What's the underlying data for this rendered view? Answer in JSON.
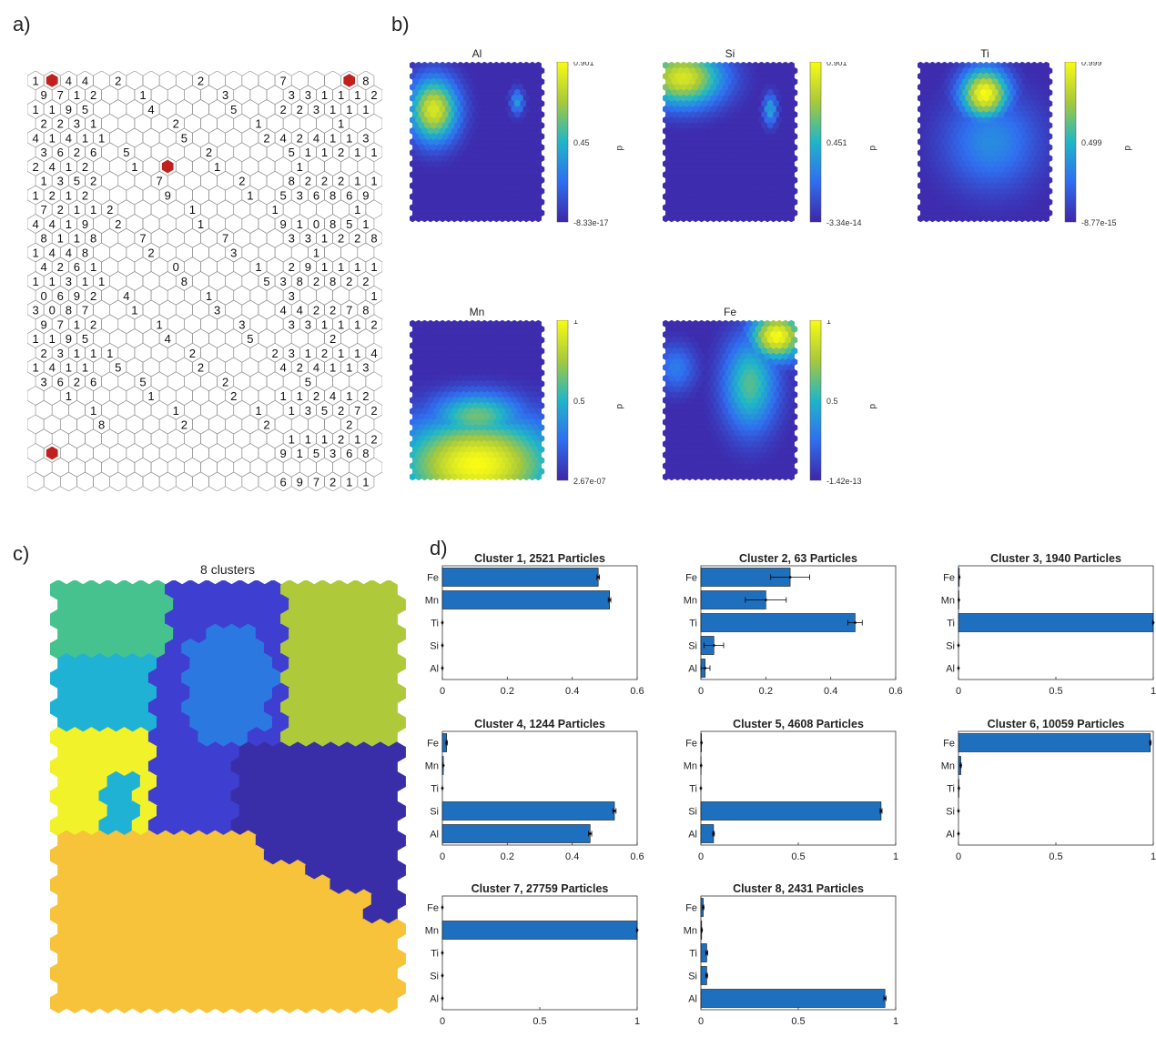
{
  "panels": {
    "a": "a)",
    "b": "b)",
    "c": "c)",
    "d": "d)"
  },
  "hit_map": {
    "numbers_sample": [
      "1",
      "3",
      "4",
      "4",
      "2",
      "2",
      "7",
      "8",
      "9",
      "7",
      "1",
      "2",
      "1",
      "3",
      "3",
      "3",
      "1",
      "1",
      "1",
      "2",
      "1",
      "1",
      "9",
      "5",
      "4",
      "5",
      "2",
      "2",
      "3",
      "1",
      "1",
      "1",
      "2",
      "2",
      "3",
      "1",
      "2",
      "1",
      "1",
      "4",
      "1",
      "4",
      "1",
      "1",
      "5",
      "2",
      "4",
      "2",
      "4",
      "1",
      "1",
      "3",
      "3",
      "6",
      "2",
      "6",
      "5",
      "2",
      "5",
      "1",
      "1",
      "2",
      "1",
      "1",
      "2",
      "4",
      "1",
      "2",
      "1",
      "1",
      "1",
      "1",
      "3",
      "5",
      "2",
      "7",
      "2",
      "8",
      "2",
      "2",
      "2",
      "1",
      "1",
      "1",
      "2",
      "1",
      "2",
      "9",
      "1",
      "5",
      "3",
      "6",
      "8",
      "6",
      "9",
      "7",
      "2",
      "1",
      "1",
      "2",
      "1",
      "1",
      "1",
      "4",
      "4",
      "1",
      "9",
      "2",
      "1",
      "9",
      "1",
      "0",
      "8",
      "5",
      "1",
      "8",
      "1",
      "1",
      "8",
      "7",
      "7",
      "3",
      "3",
      "1",
      "2",
      "2",
      "8",
      "1",
      "4",
      "4",
      "8",
      "2",
      "3",
      "1",
      "4",
      "2",
      "6",
      "1",
      "0",
      "1",
      "2",
      "9",
      "1",
      "1",
      "1",
      "1",
      "1",
      "1",
      "3",
      "1",
      "1",
      "8",
      "5",
      "3",
      "8",
      "2",
      "8",
      "2",
      "2",
      "0",
      "6",
      "9",
      "2",
      "4",
      "1",
      "3",
      "1",
      "3",
      "0",
      "8",
      "7"
    ]
  },
  "component_planes": [
    {
      "name": "Al",
      "cmax": "0.901",
      "cmid": "0.45",
      "cmin": "-8.33e-17",
      "unit": "d"
    },
    {
      "name": "Si",
      "cmax": "0.901",
      "cmid": "0.451",
      "cmin": "-3.34e-14",
      "unit": "d"
    },
    {
      "name": "Ti",
      "cmax": "0.999",
      "cmid": "0.499",
      "cmin": "-8.77e-15",
      "unit": "d"
    },
    {
      "name": "Mn",
      "cmax": "1",
      "cmid": "0.5",
      "cmin": "2.67e-07",
      "unit": "d"
    },
    {
      "name": "Fe",
      "cmax": "1",
      "cmid": "0.5",
      "cmin": "-1.42e-13",
      "unit": "d"
    }
  ],
  "cluster_map": {
    "title": "8 clusters",
    "colors": {
      "c1": "#f6c33a",
      "c2": "#3e3ed1",
      "c3": "#2b79e0",
      "c4": "#1fb2d5",
      "c5": "#46c28e",
      "c6": "#aec93a",
      "c7": "#f2f22a",
      "c8": "#3a2ea8"
    }
  },
  "chart_data": [
    {
      "type": "bar",
      "orientation": "horizontal",
      "title": "Cluster 1, 2521 Particles",
      "categories": [
        "Fe",
        "Mn",
        "Ti",
        "Si",
        "Al"
      ],
      "values": [
        0.48,
        0.515,
        0,
        0,
        0
      ],
      "errors": [
        0.004,
        0.004,
        0,
        0,
        0
      ],
      "xlim": [
        0,
        0.6
      ],
      "xticks": [
        "0",
        "0.2",
        "0.4",
        "0.6"
      ]
    },
    {
      "type": "bar",
      "orientation": "horizontal",
      "title": "Cluster 2, 63 Particles",
      "categories": [
        "Fe",
        "Mn",
        "Ti",
        "Si",
        "Al"
      ],
      "values": [
        0.275,
        0.2,
        0.475,
        0.04,
        0.013
      ],
      "errors": [
        0.06,
        0.063,
        0.022,
        0.03,
        0.015
      ],
      "xlim": [
        0,
        0.6
      ],
      "xticks": [
        "0",
        "0.2",
        "0.4",
        "0.6"
      ]
    },
    {
      "type": "bar",
      "orientation": "horizontal",
      "title": "Cluster 3, 1940 Particles",
      "categories": [
        "Fe",
        "Mn",
        "Ti",
        "Si",
        "Al"
      ],
      "values": [
        0.004,
        0.002,
        1.0,
        0,
        0
      ],
      "errors": [
        0,
        0,
        0.002,
        0,
        0
      ],
      "xlim": [
        0,
        1
      ],
      "xticks": [
        "0",
        "0.5",
        "1"
      ]
    },
    {
      "type": "bar",
      "orientation": "horizontal",
      "title": "Cluster 4, 1244 Particles",
      "categories": [
        "Fe",
        "Mn",
        "Ti",
        "Si",
        "Al"
      ],
      "values": [
        0.013,
        0.003,
        0,
        0.53,
        0.455
      ],
      "errors": [
        0.002,
        0,
        0,
        0.005,
        0.005
      ],
      "xlim": [
        0,
        0.6
      ],
      "xticks": [
        "0",
        "0.2",
        "0.4",
        "0.6"
      ]
    },
    {
      "type": "bar",
      "orientation": "horizontal",
      "title": "Cluster 5, 4608 Particles",
      "categories": [
        "Fe",
        "Mn",
        "Ti",
        "Si",
        "Al"
      ],
      "values": [
        0.003,
        0.001,
        0,
        0.925,
        0.065
      ],
      "errors": [
        0,
        0,
        0,
        0.005,
        0.004
      ],
      "xlim": [
        0,
        1
      ],
      "xticks": [
        "0",
        "0.5",
        "1"
      ]
    },
    {
      "type": "bar",
      "orientation": "horizontal",
      "title": "Cluster 6, 10059 Particles",
      "categories": [
        "Fe",
        "Mn",
        "Ti",
        "Si",
        "Al"
      ],
      "values": [
        0.985,
        0.012,
        0.002,
        0,
        0
      ],
      "errors": [
        0.003,
        0.002,
        0,
        0,
        0
      ],
      "xlim": [
        0,
        1
      ],
      "xticks": [
        "0",
        "0.5",
        "1"
      ]
    },
    {
      "type": "bar",
      "orientation": "horizontal",
      "title": "Cluster 7, 27759 Particles",
      "categories": [
        "Fe",
        "Mn",
        "Ti",
        "Si",
        "Al"
      ],
      "values": [
        0,
        1.0,
        0,
        0,
        0
      ],
      "errors": [
        0,
        0.002,
        0,
        0,
        0
      ],
      "xlim": [
        0,
        1
      ],
      "xticks": [
        "0",
        "0.5",
        "1"
      ]
    },
    {
      "type": "bar",
      "orientation": "horizontal",
      "title": "Cluster 8, 2431 Particles",
      "categories": [
        "Fe",
        "Mn",
        "Ti",
        "Si",
        "Al"
      ],
      "values": [
        0.012,
        0.004,
        0.03,
        0.03,
        0.945
      ],
      "errors": [
        0.003,
        0.002,
        0.005,
        0.004,
        0.006
      ],
      "xlim": [
        0,
        1
      ],
      "xticks": [
        "0",
        "0.5",
        "1"
      ]
    }
  ]
}
